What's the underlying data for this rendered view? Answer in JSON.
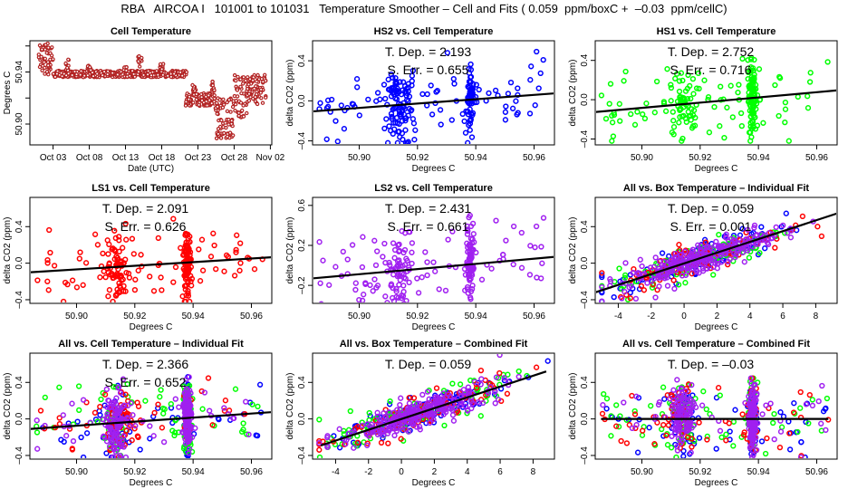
{
  "title": "RBA   AIRCOA I   101001 to 101031   Temperature Smoother – Cell and Fits ( 0.059  ppm/boxC +  –0.03  ppm/cellC)",
  "colors": {
    "HS2": "#0000ff",
    "HS1": "#00ff00",
    "LS1": "#ff0000",
    "LS2": "#a020f0",
    "cell": "#b22222",
    "fit_line": "#000000"
  },
  "chart_data": [
    {
      "id": "cell-temperature",
      "type": "scatter",
      "title": "Cell Temperature",
      "xlabel": "Date (UTC)",
      "ylabel": "Degrees C",
      "x_tick_labels": [
        "Oct 03",
        "Oct 08",
        "Oct 13",
        "Oct 18",
        "Oct 23",
        "Oct 28",
        "Nov 02"
      ],
      "x_tick_days": [
        3,
        8,
        13,
        18,
        23,
        28,
        33
      ],
      "xlim_days": [
        -0.2,
        33.2
      ],
      "y_ticks": [
        50.9,
        50.92,
        50.94
      ],
      "y_tick_labels": [
        "50.90",
        "",
        "50.94"
      ],
      "ylim": [
        50.884,
        50.964
      ],
      "series": [
        {
          "name": "Cell Temperature",
          "segments": [
            {
              "day_start": 1.0,
              "day_end": 3.0,
              "y_low": 50.938,
              "y_high": 50.962
            },
            {
              "day_start": 3.0,
              "day_end": 21.5,
              "y_low": 50.936,
              "y_high": 50.941,
              "spikes": [
                [
                  5,
                  50.95
                ],
                [
                  8,
                  50.946
                ],
                [
                  15,
                  50.953
                ],
                [
                  18,
                  50.947
                ],
                [
                  13,
                  50.944
                ]
              ]
            },
            {
              "day_start": 21.3,
              "day_end": 25.3,
              "y_low": 50.914,
              "y_high": 50.924,
              "spikes": [
                [
                  22.5,
                  50.93
                ],
                [
                  25.1,
                  50.933
                ]
              ]
            },
            {
              "day_start": 25.3,
              "day_end": 28.0,
              "y_low": 50.889,
              "y_high": 50.92
            },
            {
              "day_start": 28.0,
              "day_end": 29.8,
              "y_low": 50.905,
              "y_high": 50.938
            },
            {
              "day_start": 29.8,
              "day_end": 32.4,
              "y_low": 50.915,
              "y_high": 50.939
            }
          ]
        }
      ]
    },
    {
      "id": "hs2-vs-cell",
      "type": "scatter",
      "title": "HS2 vs. Cell Temperature",
      "xlabel": "Degrees C",
      "ylabel": "delta CO2 (ppm)",
      "x_ticks": [
        50.9,
        50.92,
        50.94,
        50.96
      ],
      "xlim": [
        50.884,
        50.967
      ],
      "y_ticks": [
        -0.4,
        0.0,
        0.4
      ],
      "ylim": [
        -0.44,
        0.6
      ],
      "series": [
        {
          "name": "HS2",
          "color_key": "HS2"
        }
      ],
      "fit": {
        "x": [
          50.884,
          50.967
        ],
        "y": [
          -0.105,
          0.075
        ]
      },
      "annotations": [
        "T. Dep. =  2.193",
        "S. Err. =  0.655"
      ]
    },
    {
      "id": "hs1-vs-cell",
      "type": "scatter",
      "title": "HS1 vs. Cell Temperature",
      "xlabel": "Degrees C",
      "ylabel": "delta CO2 (ppm)",
      "x_ticks": [
        50.9,
        50.92,
        50.94,
        50.96
      ],
      "xlim": [
        50.884,
        50.967
      ],
      "y_ticks": [
        -0.4,
        0.0,
        0.4
      ],
      "ylim": [
        -0.46,
        0.6
      ],
      "series": [
        {
          "name": "HS1",
          "color_key": "HS1"
        }
      ],
      "fit": {
        "x": [
          50.884,
          50.967
        ],
        "y": [
          -0.125,
          0.095
        ]
      },
      "annotations": [
        "T. Dep. =  2.752",
        "S. Err. =  0.716"
      ]
    },
    {
      "id": "ls1-vs-cell",
      "type": "scatter",
      "title": "LS1 vs. Cell Temperature",
      "xlabel": "Degrees C",
      "ylabel": "delta CO2 (ppm)",
      "x_ticks": [
        50.9,
        50.92,
        50.94,
        50.96
      ],
      "xlim": [
        50.884,
        50.967
      ],
      "y_ticks": [
        -0.4,
        0.0,
        0.4
      ],
      "ylim": [
        -0.44,
        0.72
      ],
      "series": [
        {
          "name": "LS1",
          "color_key": "LS1"
        }
      ],
      "fit": {
        "x": [
          50.884,
          50.967
        ],
        "y": [
          -0.1,
          0.065
        ]
      },
      "annotations": [
        "T. Dep. =  2.091",
        "S. Err. =  0.626"
      ]
    },
    {
      "id": "ls2-vs-cell",
      "type": "scatter",
      "title": "LS2 vs. Cell Temperature",
      "xlabel": "Degrees C",
      "ylabel": "delta CO2 (ppm)",
      "x_ticks": [
        50.9,
        50.92,
        50.94,
        50.96
      ],
      "xlim": [
        50.884,
        50.967
      ],
      "y_ticks": [
        -0.2,
        0.2,
        0.6
      ],
      "ylim": [
        -0.38,
        0.68
      ],
      "series": [
        {
          "name": "LS2",
          "color_key": "LS2"
        }
      ],
      "fit": {
        "x": [
          50.884,
          50.967
        ],
        "y": [
          -0.13,
          0.085
        ]
      },
      "annotations": [
        "T. Dep. =  2.431",
        "S. Err. =  0.661"
      ]
    },
    {
      "id": "all-vs-box-individual",
      "type": "scatter",
      "title": "All vs. Box Temperature – Individual Fit",
      "xlabel": "Degrees C",
      "ylabel": "delta CO2 (ppm)",
      "x_ticks": [
        -4,
        -2,
        0,
        2,
        4,
        6,
        8
      ],
      "xlim": [
        -5.4,
        9.3
      ],
      "y_ticks": [
        -0.4,
        0.0,
        0.4
      ],
      "ylim": [
        -0.44,
        0.72
      ],
      "series": [
        {
          "name": "HS2",
          "color_key": "HS2"
        },
        {
          "name": "HS1",
          "color_key": "HS1"
        },
        {
          "name": "LS1",
          "color_key": "LS1"
        },
        {
          "name": "LS2",
          "color_key": "LS2"
        }
      ],
      "fit": {
        "x": [
          -5.4,
          9.3
        ],
        "y": [
          -0.32,
          0.545
        ]
      },
      "annotations": [
        "T. Dep. =  0.059",
        "S. Err. =  0.001"
      ]
    },
    {
      "id": "all-vs-cell-individual",
      "type": "scatter",
      "title": "All vs. Cell Temperature – Individual Fit",
      "xlabel": "Degrees C",
      "ylabel": "delta CO2 (ppm)",
      "x_ticks": [
        50.9,
        50.92,
        50.94,
        50.96
      ],
      "xlim": [
        50.884,
        50.967
      ],
      "y_ticks": [
        -0.4,
        0.0,
        0.4
      ],
      "ylim": [
        -0.44,
        0.72
      ],
      "series": [
        {
          "name": "HS2",
          "color_key": "HS2"
        },
        {
          "name": "HS1",
          "color_key": "HS1"
        },
        {
          "name": "LS1",
          "color_key": "LS1"
        },
        {
          "name": "LS2",
          "color_key": "LS2"
        }
      ],
      "fit": {
        "x": [
          50.884,
          50.967
        ],
        "y": [
          -0.11,
          0.075
        ]
      },
      "annotations": [
        "T. Dep. =  2.366",
        "S. Err. =  0.652"
      ]
    },
    {
      "id": "all-vs-box-combined",
      "type": "scatter",
      "title": "All vs. Box Temperature – Combined Fit",
      "xlabel": "Degrees C",
      "ylabel": "delta CO2 (ppm)",
      "x_ticks": [
        -4,
        -2,
        0,
        2,
        4,
        6,
        8
      ],
      "xlim": [
        -5.4,
        9.3
      ],
      "y_ticks": [
        -0.4,
        0.0,
        0.4
      ],
      "ylim": [
        -0.44,
        0.72
      ],
      "series": [
        {
          "name": "HS2",
          "color_key": "HS2"
        },
        {
          "name": "HS1",
          "color_key": "HS1"
        },
        {
          "name": "LS1",
          "color_key": "LS1"
        },
        {
          "name": "LS2",
          "color_key": "LS2"
        }
      ],
      "fit": {
        "x": [
          -4.9,
          8.8
        ],
        "y": [
          -0.29,
          0.52
        ]
      },
      "annotations": [
        "T. Dep. =  0.059"
      ]
    },
    {
      "id": "all-vs-cell-combined",
      "type": "scatter",
      "title": "All vs. Cell Temperature – Combined Fit",
      "xlabel": "Degrees C",
      "ylabel": "delta CO2 (ppm)",
      "x_ticks": [
        50.9,
        50.92,
        50.94,
        50.96
      ],
      "xlim": [
        50.884,
        50.967
      ],
      "y_ticks": [
        -0.4,
        0.0,
        0.4
      ],
      "ylim": [
        -0.44,
        0.72
      ],
      "series": [
        {
          "name": "HS2",
          "color_key": "HS2"
        },
        {
          "name": "HS1",
          "color_key": "HS1"
        },
        {
          "name": "LS1",
          "color_key": "LS1"
        },
        {
          "name": "LS2",
          "color_key": "LS2"
        }
      ],
      "fit": {
        "x": [
          50.886,
          50.964
        ],
        "y": [
          0.0,
          0.0
        ]
      },
      "annotations": [
        "T. Dep. =  –0.03"
      ]
    }
  ]
}
